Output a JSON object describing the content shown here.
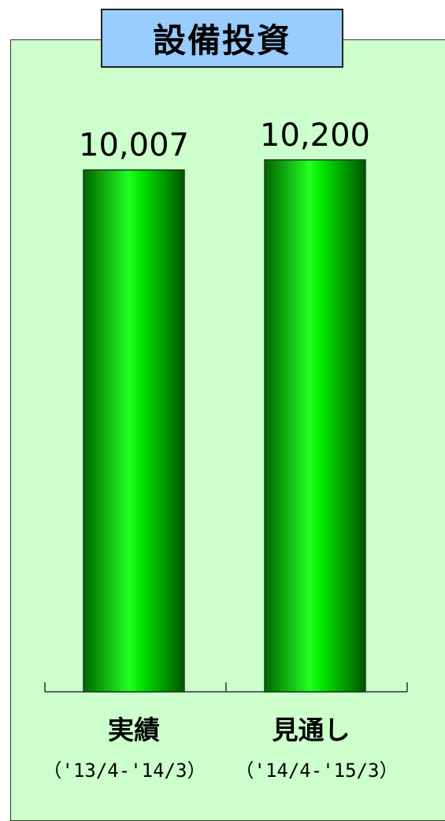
{
  "chart_data": {
    "type": "bar",
    "title": "設備投資",
    "categories": [
      "実績",
      "見通し"
    ],
    "periods": [
      "（'13/4-'14/3）",
      "（'14/4-'15/3）"
    ],
    "values": [
      10007,
      10200
    ],
    "value_labels": [
      "10,007",
      "10,200"
    ],
    "ylim": [
      0,
      11000
    ],
    "grid": false,
    "legend": "none",
    "bar_color": "#00dd00",
    "bar_edge_color": "#006600"
  },
  "colors": {
    "panel_background": "#ccffcc",
    "title_background": "#99ccff"
  }
}
